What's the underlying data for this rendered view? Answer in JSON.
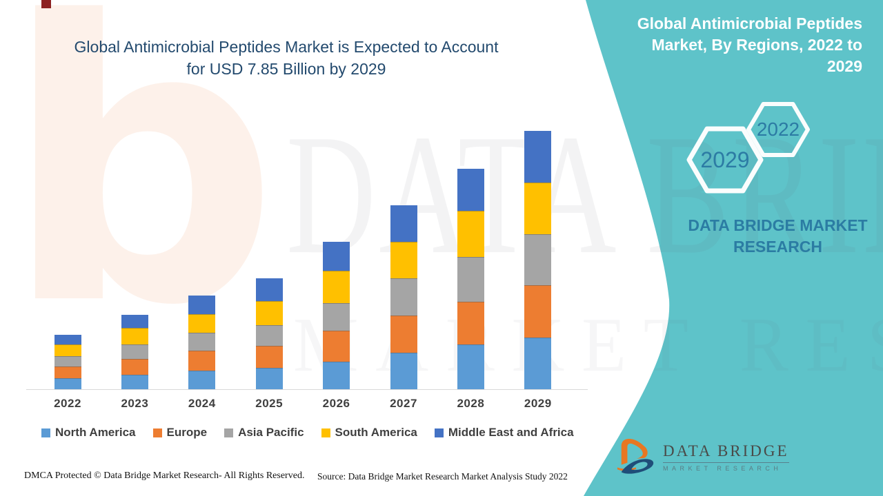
{
  "page": {
    "chart_title": "Global Antimicrobial Peptides Market is Expected to Account for USD 7.85 Billion by 2029"
  },
  "banner": {
    "title": "Global Antimicrobial Peptides Market, By Regions, 2022 to 2029",
    "brand_text": "DATA BRIDGE MARKET RESEARCH",
    "hexagon_big_year": "2029",
    "hexagon_small_year": "2022",
    "teal_color": "#5EC3C9",
    "text_color": "#2B7CA3"
  },
  "chart_data": {
    "type": "bar",
    "stacked": true,
    "title": "Global Antimicrobial Peptides Market is Expected to Account for USD 7.85 Billion by 2029",
    "unit": "USD Billion",
    "categories": [
      "2022",
      "2023",
      "2024",
      "2025",
      "2026",
      "2027",
      "2028",
      "2029"
    ],
    "series": [
      {
        "name": "North America",
        "color": "#5B9BD5",
        "values": [
          0.33,
          0.44,
          0.57,
          0.65,
          0.84,
          1.11,
          1.36,
          1.57
        ]
      },
      {
        "name": "Europe",
        "color": "#ED7D31",
        "values": [
          0.36,
          0.48,
          0.61,
          0.67,
          0.94,
          1.12,
          1.3,
          1.59
        ]
      },
      {
        "name": "Asia Pacific",
        "color": "#A5A5A5",
        "values": [
          0.31,
          0.44,
          0.54,
          0.63,
          0.84,
          1.12,
          1.36,
          1.55
        ]
      },
      {
        "name": "South America",
        "color": "#FFC000",
        "values": [
          0.36,
          0.5,
          0.57,
          0.73,
          0.98,
          1.11,
          1.4,
          1.57
        ]
      },
      {
        "name": "Middle East and Africa",
        "color": "#4472C4",
        "values": [
          0.29,
          0.4,
          0.57,
          0.69,
          0.88,
          1.11,
          1.28,
          1.57
        ]
      }
    ],
    "totals_note": "2029 total = 7.85 (stated in title); other yearly totals estimated from bar heights: 2022 1.65, 2023 2.26, 2024 2.86, 2025 3.37, 2026 4.48, 2027 5.57, 2028 6.70",
    "ylim": [
      0,
      8.2
    ],
    "grid": false,
    "y_axis_visible": false,
    "legend_position": "bottom"
  },
  "watermark": {
    "letter": "b",
    "line1": "DATA BRIDGE",
    "line2": "MARKET RESEARCH"
  },
  "logo": {
    "name": "DATA BRIDGE",
    "tagline": "MARKET RESEARCH"
  },
  "footer": {
    "dmca": "DMCA Protected © Data Bridge Market Research- All Rights Reserved.",
    "source": "Source: Data Bridge Market Research Market Analysis Study 2022"
  }
}
